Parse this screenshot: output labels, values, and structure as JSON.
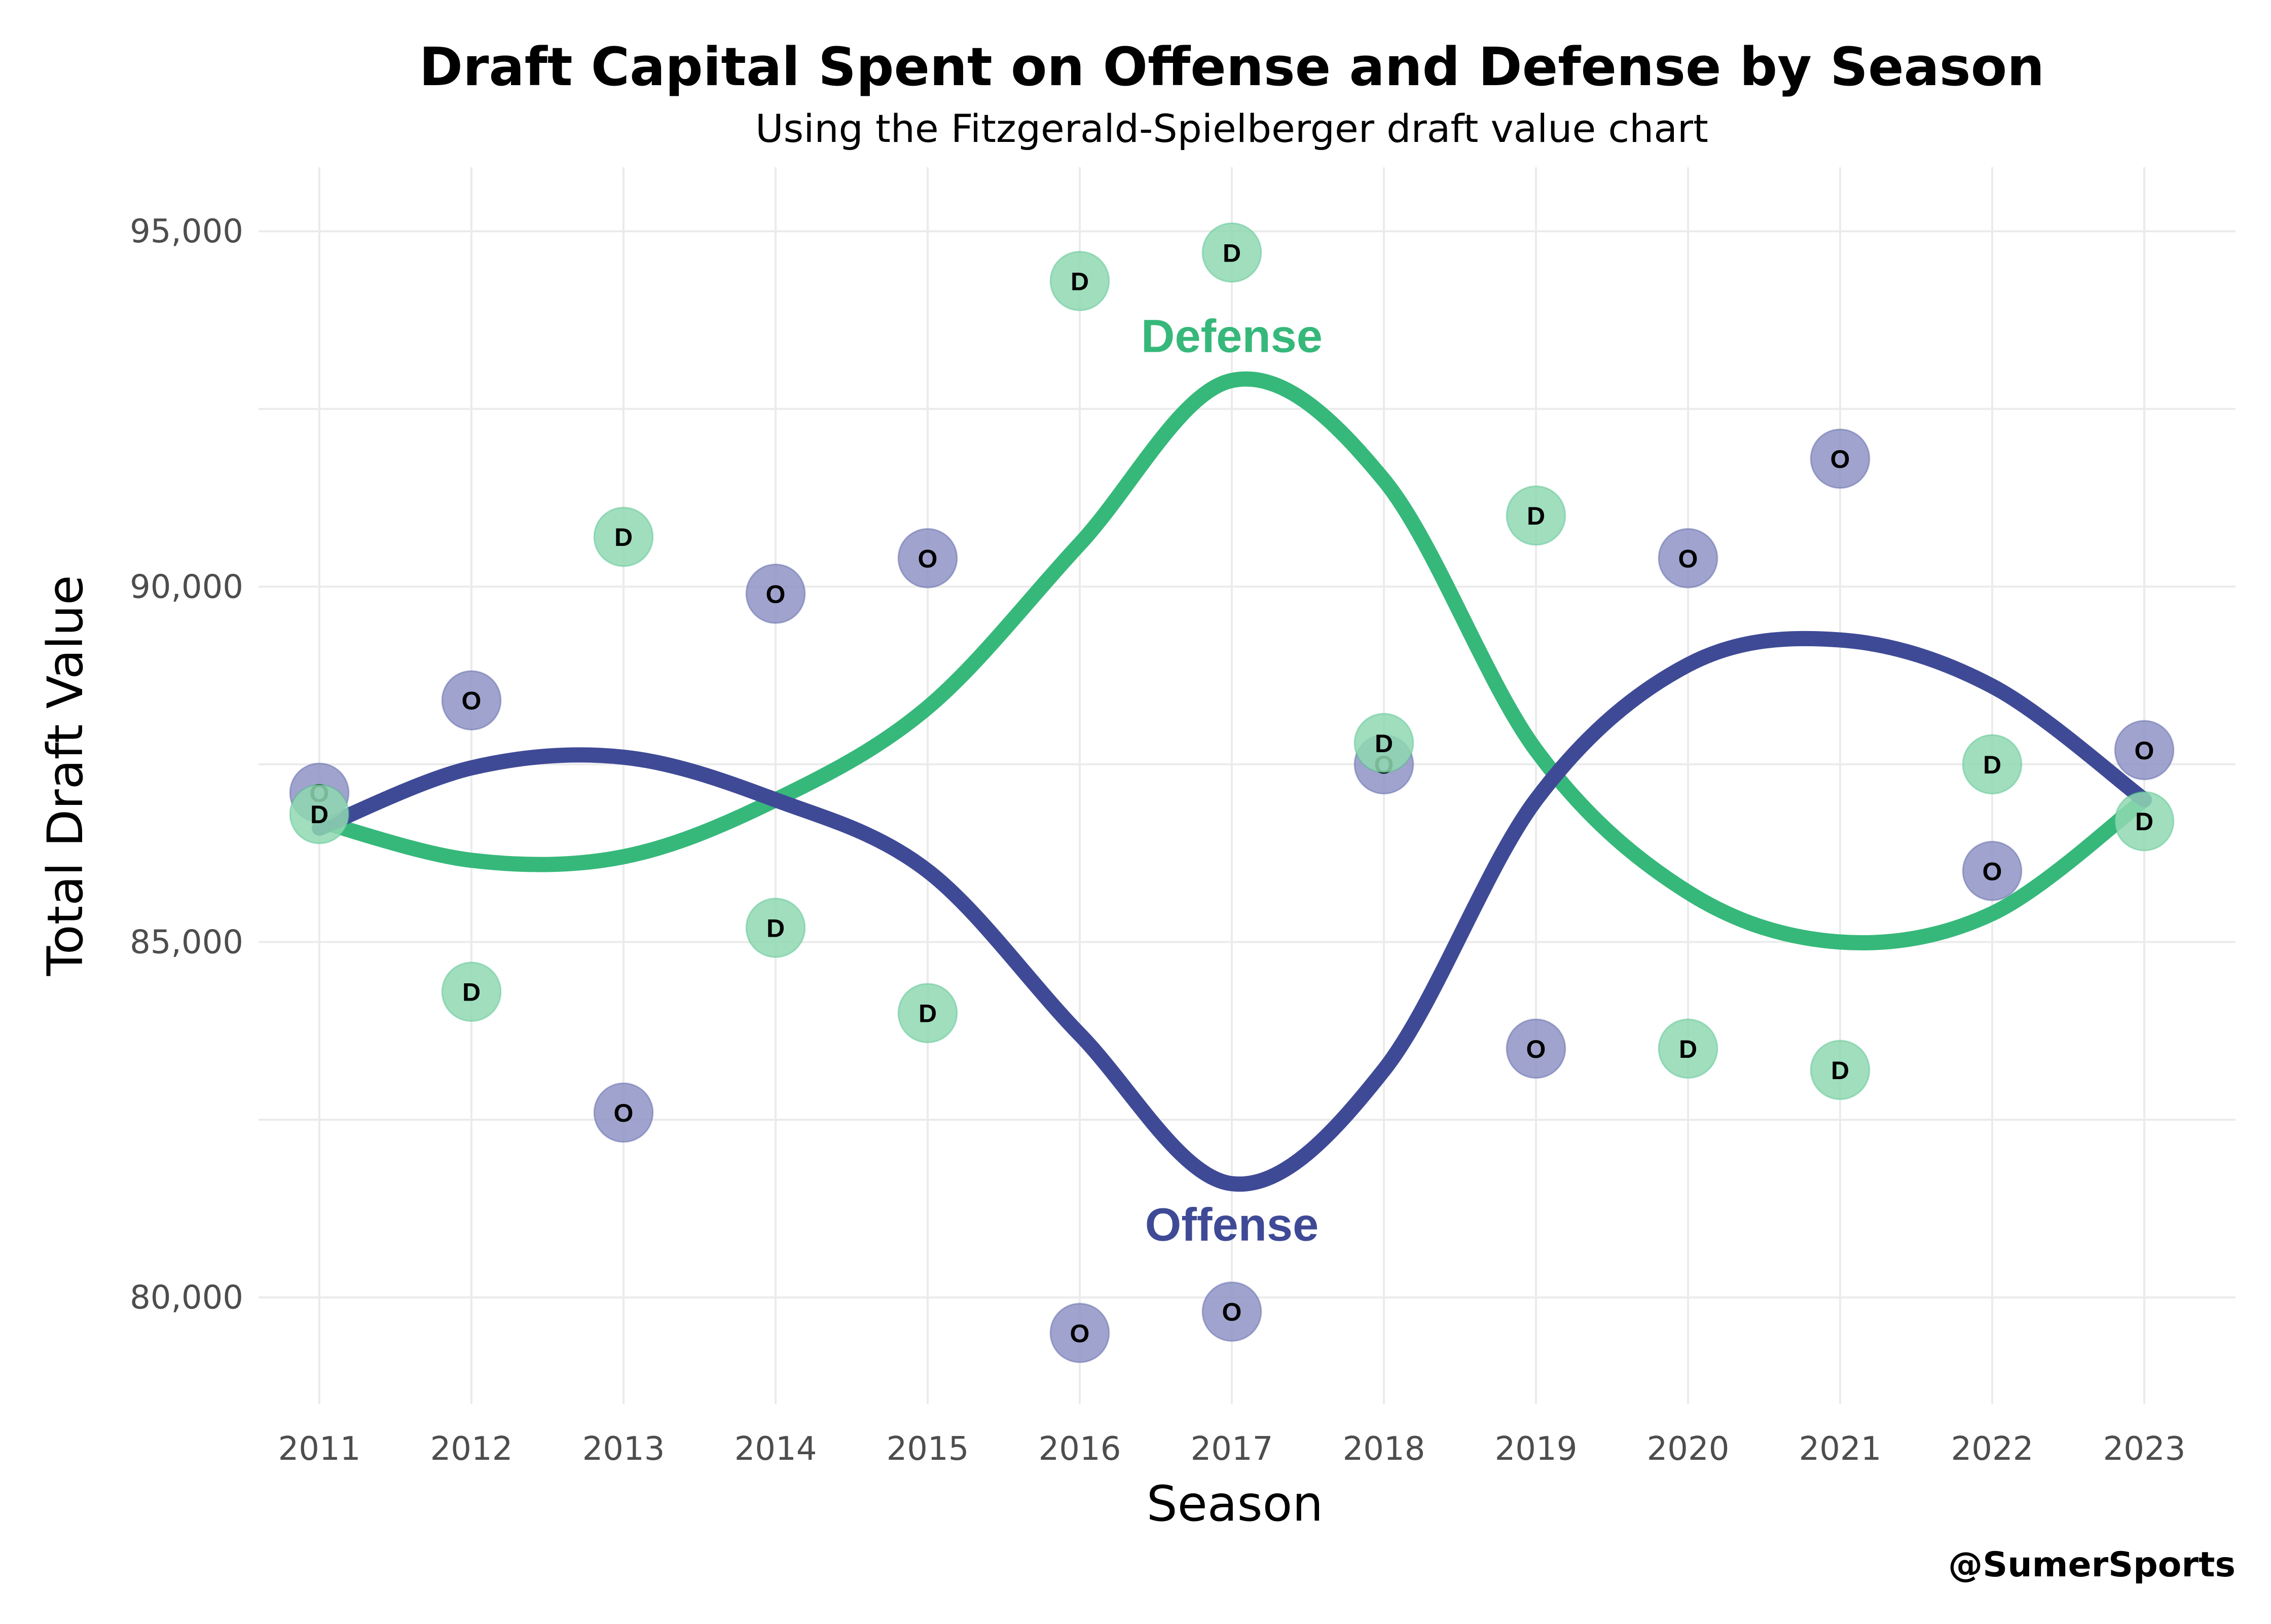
{
  "chart_data": {
    "type": "scatter",
    "title": "Draft Capital Spent on Offense and Defense by Season",
    "subtitle": "Using the Fitzgerald-Spielberger draft value chart",
    "xlabel": "Season",
    "ylabel": "Total Draft Value",
    "caption": "@SumerSports",
    "x": [
      2011,
      2012,
      2013,
      2014,
      2015,
      2016,
      2017,
      2018,
      2019,
      2020,
      2021,
      2022,
      2023
    ],
    "xlim": [
      2010.6,
      2023.6
    ],
    "ylim": [
      78500,
      95900
    ],
    "yticks": [
      80000,
      85000,
      90000,
      95000
    ],
    "ytick_labels": [
      "80,000",
      "85,000",
      "90,000",
      "95,000"
    ],
    "grid": true,
    "legend": "none",
    "series": [
      {
        "name": "Offense",
        "marker_label": "O",
        "color": "#3f4a96",
        "point_fill": "#8e93c4",
        "values": [
          87100,
          88400,
          82600,
          89900,
          90400,
          79500,
          79800,
          87500,
          83500,
          90400,
          91800,
          86000,
          87700
        ],
        "trend": [
          86600,
          87450,
          87600,
          87000,
          86000,
          83700,
          81600,
          83200,
          87000,
          88900,
          89250,
          88600,
          87000
        ]
      },
      {
        "name": "Defense",
        "marker_label": "D",
        "color": "#36b87a",
        "point_fill": "#8fd8b2",
        "values": [
          86800,
          84300,
          90700,
          85200,
          84000,
          94300,
          94700,
          87800,
          91000,
          83500,
          83200,
          87500,
          86700
        ],
        "trend": [
          86700,
          86150,
          86200,
          87000,
          88300,
          90600,
          92900,
          91500,
          87700,
          85700,
          85000,
          85400,
          87000
        ]
      }
    ],
    "annotations": [
      {
        "text": "Defense",
        "x": 2017,
        "y": 93300,
        "series": "Defense"
      },
      {
        "text": "Offense",
        "x": 2017,
        "y": 80800,
        "series": "Offense"
      }
    ]
  }
}
